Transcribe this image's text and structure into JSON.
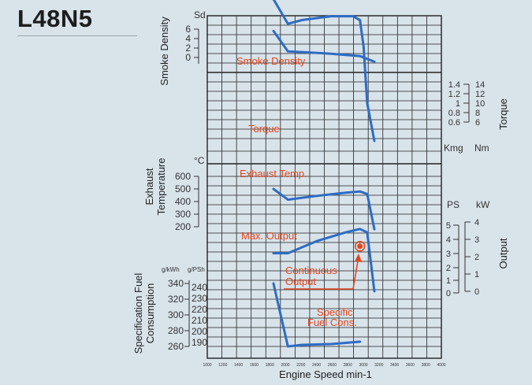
{
  "model": "L48N5",
  "colors": {
    "background": "#d8e3ea",
    "curve": "#2e6cc4",
    "annotation": "#e2461e",
    "grid": "#222222"
  },
  "chart_data": {
    "type": "line",
    "x": {
      "label": "Engine Speed min-1",
      "ticks": [
        1000,
        1200,
        1400,
        1600,
        1800,
        2000,
        2200,
        2400,
        2600,
        2800,
        3000,
        3200,
        3400,
        3600,
        3800,
        4000
      ]
    },
    "labels": {
      "smoke": "Smoke Density",
      "exhaust_1": "Exhaust",
      "exhaust_2": "Temperature",
      "sfc_1": "Specification Fuel",
      "sfc_2": "Consumption",
      "torque": "Torque",
      "output": "Output",
      "x": "Engine Speed min-1"
    },
    "units": {
      "smoke": "Sd",
      "temp": "°C",
      "sfc_kwh": "g/kWh",
      "sfc_psh": "g/PSh",
      "torque_kgm": "Kmg",
      "torque_nm": "Nm",
      "output_ps": "PS",
      "output_kw": "kW"
    },
    "axes": {
      "smoke": [
        "Sd",
        "6",
        "4",
        "2",
        "0"
      ],
      "torque_kgm": [
        "1.4",
        "1.2",
        "1",
        "0.8",
        "0.6"
      ],
      "torque_nm": [
        "14",
        "12",
        "10",
        "8",
        "6"
      ],
      "temp": [
        "600",
        "500",
        "400",
        "300",
        "200"
      ],
      "output_ps": [
        "5",
        "4",
        "3",
        "2",
        "1",
        "0"
      ],
      "output_kw": [
        "4",
        "3",
        "2",
        "1",
        "0"
      ],
      "sfc_kwh": [
        "340",
        "320",
        "300",
        "280",
        "260"
      ],
      "sfc_psh": [
        "240",
        "230",
        "220",
        "210",
        "200",
        "190"
      ]
    },
    "annotations": {
      "smoke": "Smoke Density",
      "torque": "Torque",
      "exhaust": "Exhaust Temp.",
      "max_output": "Max. Output",
      "cont_1": "Continuous",
      "cont_2": "Output",
      "sfc_1": "Specific",
      "sfc_2": "Fuel Cons."
    },
    "series": [
      {
        "name": "Smoke Density",
        "unit": "Sd",
        "x": [
          1800,
          2000,
          2600,
          3000,
          3200
        ],
        "y": [
          7.1,
          2.8,
          2.3,
          1.8,
          0.6
        ]
      },
      {
        "name": "Torque",
        "unit": "kgm",
        "x": [
          1800,
          2000,
          2200,
          2600,
          2900,
          3000,
          3050,
          3100,
          3200
        ],
        "y": [
          1.25,
          1.12,
          1.14,
          1.16,
          1.16,
          1.14,
          1.0,
          0.7,
          0.5
        ]
      },
      {
        "name": "Exhaust Temp.",
        "unit": "°C",
        "x": [
          1800,
          2000,
          2400,
          2800,
          3000,
          3100,
          3200
        ],
        "y": [
          500,
          415,
          445,
          470,
          480,
          460,
          180
        ]
      },
      {
        "name": "Max. Output",
        "unit": "kW",
        "x": [
          1800,
          2000,
          2400,
          2800,
          3000,
          3100,
          3200
        ],
        "y": [
          2.2,
          2.2,
          2.9,
          3.4,
          3.6,
          3.4,
          0
        ]
      },
      {
        "name": "Continuous Output",
        "unit": "kW",
        "x": [
          3000
        ],
        "y": [
          2.6
        ]
      },
      {
        "name": "Specific Fuel Cons.",
        "unit": "g/kWh",
        "x": [
          1800,
          1900,
          2000,
          2200,
          2600,
          3000
        ],
        "y": [
          340,
          300,
          260,
          262,
          263,
          266
        ]
      }
    ]
  }
}
